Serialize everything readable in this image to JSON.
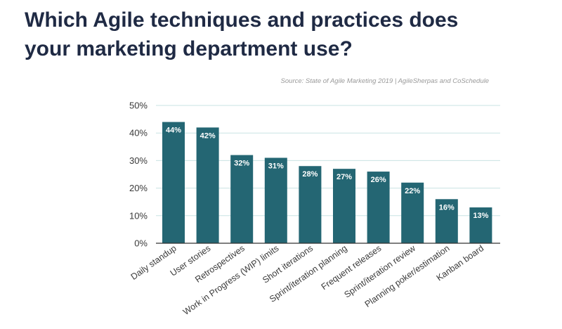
{
  "title_lines": [
    "Which Agile techniques and practices does",
    "your marketing department use?"
  ],
  "source": "Source: State of Agile Marketing 2019 | AgileSherpas and CoSchedule",
  "colors": {
    "bar": "#246673",
    "grid": "#c9e3e3",
    "axis": "#333333",
    "title": "#1f2a44"
  },
  "chart_data": {
    "type": "bar",
    "title": "Which Agile techniques and practices does your marketing department use?",
    "xlabel": "",
    "ylabel": "",
    "ylim": [
      0,
      50
    ],
    "yticks": [
      0,
      10,
      20,
      30,
      40,
      50
    ],
    "ytick_labels": [
      "0%",
      "10%",
      "20%",
      "30%",
      "40%",
      "50%"
    ],
    "grid": true,
    "legend": "none",
    "categories": [
      "Daily standup",
      "User stories",
      "Retrospectives",
      "Work in Progress (WIP) limits",
      "Short iterations",
      "Sprint/iteration planning",
      "Frequent releases",
      "Sprint/iteration review",
      "Planning poker/estimation",
      "Kanban board"
    ],
    "values": [
      44,
      42,
      32,
      31,
      28,
      27,
      26,
      22,
      16,
      13
    ],
    "value_labels": [
      "44%",
      "42%",
      "32%",
      "31%",
      "28%",
      "27%",
      "26%",
      "22%",
      "16%",
      "13%"
    ]
  }
}
